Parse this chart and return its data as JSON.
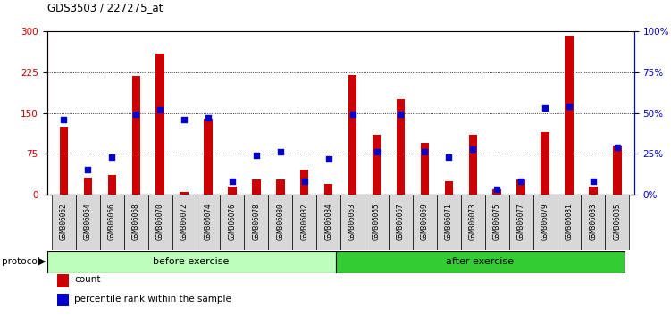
{
  "title": "GDS3503 / 227275_at",
  "samples": [
    "GSM306062",
    "GSM306064",
    "GSM306066",
    "GSM306068",
    "GSM306070",
    "GSM306072",
    "GSM306074",
    "GSM306076",
    "GSM306078",
    "GSM306080",
    "GSM306082",
    "GSM306084",
    "GSM306063",
    "GSM306065",
    "GSM306067",
    "GSM306069",
    "GSM306071",
    "GSM306073",
    "GSM306075",
    "GSM306077",
    "GSM306079",
    "GSM306081",
    "GSM306083",
    "GSM306085"
  ],
  "counts": [
    125,
    30,
    35,
    218,
    260,
    5,
    140,
    15,
    28,
    28,
    45,
    20,
    220,
    110,
    175,
    95,
    25,
    110,
    10,
    28,
    115,
    293,
    15,
    90
  ],
  "percentiles": [
    46,
    15,
    23,
    49,
    52,
    46,
    47,
    8,
    24,
    26,
    8,
    22,
    49,
    26,
    49,
    26,
    23,
    28,
    3,
    8,
    53,
    54,
    8,
    29
  ],
  "before_exercise_count": 12,
  "after_exercise_count": 12,
  "bar_color": "#cc0000",
  "dot_color": "#0000cc",
  "before_color": "#bbffbb",
  "after_color": "#33cc33",
  "protocol_label": "protocol",
  "before_label": "before exercise",
  "after_label": "after exercise",
  "legend_count": "count",
  "legend_percentile": "percentile rank within the sample",
  "ylim_left": [
    0,
    300
  ],
  "ylim_right": [
    0,
    100
  ],
  "yticks_left": [
    0,
    75,
    150,
    225,
    300
  ],
  "yticks_right": [
    0,
    25,
    50,
    75,
    100
  ],
  "bg_color": "#f0f0f0"
}
